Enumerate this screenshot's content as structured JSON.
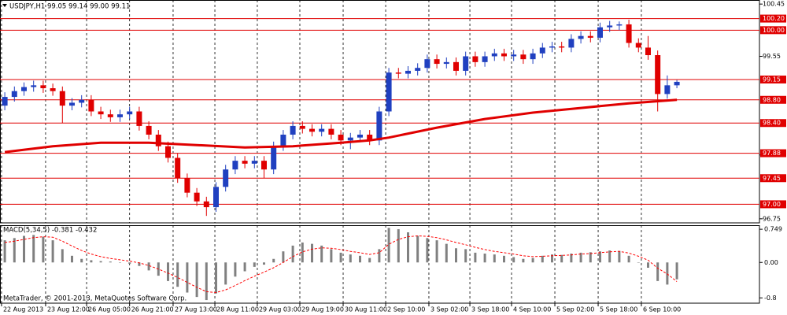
{
  "chart_data": [
    {
      "type": "candlestick",
      "title": "USDJPY,H1  99.05 99.14 99.00 99.11",
      "up_color": "#2040c0",
      "down_color": "#e00000",
      "xlim": [
        -0.5,
        78.6
      ],
      "ylim": [
        96.68,
        100.52
      ],
      "yticks": [
        100.45,
        99.55,
        97.85,
        96.75
      ],
      "open": [
        98.7,
        98.85,
        98.95,
        99.02,
        99.05,
        99.0,
        98.95,
        98.7,
        98.75,
        98.8,
        98.6,
        98.55,
        98.5,
        98.55,
        98.6,
        98.35,
        98.2,
        98.0,
        97.8,
        97.45,
        97.2,
        97.05,
        96.95,
        97.3,
        97.6,
        97.75,
        97.7,
        97.75,
        97.6,
        98.0,
        98.2,
        98.35,
        98.3,
        98.25,
        98.3,
        98.2,
        98.1,
        98.15,
        98.2,
        98.1,
        98.6,
        99.27,
        99.25,
        99.3,
        99.35,
        99.5,
        99.42,
        99.45,
        99.3,
        99.55,
        99.45,
        99.55,
        99.6,
        99.55,
        99.58,
        99.5,
        99.6,
        99.7,
        99.72,
        99.7,
        99.85,
        99.9,
        99.87,
        100.05,
        100.08,
        100.1,
        99.78,
        99.7,
        99.57,
        98.9,
        99.05
      ],
      "high": [
        98.93,
        99.03,
        99.1,
        99.13,
        99.13,
        99.08,
        99.03,
        98.83,
        98.88,
        98.88,
        98.68,
        98.63,
        98.63,
        98.68,
        98.68,
        98.43,
        98.28,
        98.08,
        97.88,
        97.53,
        97.28,
        97.13,
        97.38,
        97.68,
        97.83,
        97.83,
        97.83,
        97.83,
        98.08,
        98.28,
        98.43,
        98.43,
        98.38,
        98.38,
        98.38,
        98.28,
        98.23,
        98.28,
        98.28,
        98.68,
        99.35,
        99.35,
        99.38,
        99.43,
        99.58,
        99.58,
        99.53,
        99.53,
        99.63,
        99.63,
        99.63,
        99.68,
        99.68,
        99.66,
        99.66,
        99.68,
        99.78,
        99.8,
        99.8,
        99.93,
        99.98,
        99.98,
        100.13,
        100.16,
        100.15,
        100.18,
        99.86,
        99.9,
        99.65,
        99.22,
        99.14
      ],
      "low": [
        98.62,
        98.77,
        98.87,
        98.94,
        98.92,
        98.87,
        98.4,
        98.62,
        98.67,
        98.52,
        98.47,
        98.42,
        98.42,
        98.47,
        98.27,
        98.12,
        97.92,
        97.72,
        97.37,
        97.12,
        96.97,
        96.8,
        96.87,
        97.22,
        97.52,
        97.62,
        97.62,
        97.45,
        97.52,
        97.92,
        98.12,
        98.22,
        98.17,
        98.17,
        98.12,
        98.02,
        97.95,
        98.07,
        98.02,
        98.02,
        98.52,
        99.17,
        99.17,
        99.22,
        99.27,
        99.34,
        99.34,
        99.22,
        99.22,
        99.37,
        99.37,
        99.47,
        99.47,
        99.47,
        99.42,
        99.42,
        99.52,
        99.62,
        99.62,
        99.62,
        99.77,
        99.79,
        99.79,
        99.97,
        100.0,
        99.7,
        99.62,
        99.49,
        98.6,
        98.82,
        99.0
      ],
      "close": [
        98.85,
        98.95,
        99.02,
        99.05,
        99.0,
        98.95,
        98.7,
        98.75,
        98.8,
        98.6,
        98.55,
        98.5,
        98.55,
        98.6,
        98.35,
        98.2,
        98.0,
        97.8,
        97.45,
        97.2,
        97.05,
        96.95,
        97.3,
        97.6,
        97.75,
        97.7,
        97.75,
        97.6,
        98.0,
        98.2,
        98.35,
        98.3,
        98.25,
        98.3,
        98.2,
        98.1,
        98.15,
        98.2,
        98.1,
        98.6,
        99.27,
        99.25,
        99.3,
        99.35,
        99.5,
        99.42,
        99.45,
        99.3,
        99.55,
        99.45,
        99.55,
        99.6,
        99.55,
        99.58,
        99.5,
        99.6,
        99.7,
        99.72,
        99.7,
        99.85,
        99.9,
        99.87,
        100.05,
        100.08,
        100.1,
        99.78,
        99.7,
        99.57,
        98.9,
        99.05,
        99.11
      ],
      "ma": {
        "color": "#e00000",
        "x": [
          0,
          5,
          10,
          15,
          20,
          25,
          30,
          35,
          38,
          40,
          45,
          50,
          55,
          60,
          65,
          70
        ],
        "values": [
          97.9,
          98.0,
          98.06,
          98.06,
          98.02,
          97.98,
          98.0,
          98.06,
          98.1,
          98.15,
          98.32,
          98.47,
          98.58,
          98.66,
          98.74,
          98.8
        ]
      },
      "levels": {
        "color": "#e00000",
        "values": [
          100.2,
          100,
          99.15,
          98.8,
          98.4,
          97.88,
          97.45,
          97
        ],
        "value_labels": [
          "100.20",
          "100.00",
          "99.15",
          "98.80",
          "98.40",
          "97.88",
          "97.45",
          "97.00"
        ]
      },
      "grid": true
    },
    {
      "type": "macd",
      "title": "MACD(5,34,5) -0.381 -0.432",
      "watermark": "MetaTrader, © 2001-2013, MetaQuotes Software Corp.",
      "xlim": [
        -0.5,
        78.6
      ],
      "ylim": [
        -0.92,
        0.84
      ],
      "yticks": [
        0.749,
        {
          "value": 0,
          "label": "0.00"
        },
        -0.8
      ],
      "xticks": [
        {
          "value": -0.34,
          "label": "22 Aug 2013"
        },
        {
          "value": 4.25,
          "label": "23 Aug 12:00"
        },
        {
          "value": 8.52,
          "label": "26 Aug 05:00"
        },
        {
          "value": 13.0,
          "label": "26 Aug 21:00"
        },
        {
          "value": 17.53,
          "label": "27 Aug 13:00"
        },
        {
          "value": 21.88,
          "label": "28 Aug 11:00"
        },
        {
          "value": 26.3,
          "label": "29 Aug 03:00"
        },
        {
          "value": 30.73,
          "label": "29 Aug 19:00"
        },
        {
          "value": 35.24,
          "label": "30 Aug 11:00"
        },
        {
          "value": 39.67,
          "label": "2 Sep 10:00"
        },
        {
          "value": 44.17,
          "label": "3 Sep 02:00"
        },
        {
          "value": 48.44,
          "label": "3 Sep 18:00"
        },
        {
          "value": 52.78,
          "label": "4 Sep 10:00"
        },
        {
          "value": 57.29,
          "label": "5 Sep 02:00"
        },
        {
          "value": 61.8,
          "label": "5 Sep 18:00"
        },
        {
          "value": 66.3,
          "label": "6 Sep 10:00"
        }
      ],
      "series": [
        {
          "color": "#808080",
          "values": [
            0.5,
            0.55,
            0.6,
            0.62,
            0.58,
            0.5,
            0.3,
            0.15,
            0.08,
            0.05,
            0.03,
            0.02,
            0.0,
            -0.03,
            -0.08,
            -0.18,
            -0.3,
            -0.42,
            -0.55,
            -0.68,
            -0.78,
            -0.85,
            -0.7,
            -0.5,
            -0.32,
            -0.2,
            -0.1,
            -0.05,
            0.08,
            0.25,
            0.38,
            0.45,
            0.42,
            0.38,
            0.3,
            0.22,
            0.18,
            0.15,
            0.1,
            0.3,
            0.78,
            0.75,
            0.68,
            0.6,
            0.55,
            0.5,
            0.42,
            0.32,
            0.3,
            0.22,
            0.2,
            0.18,
            0.15,
            0.12,
            0.08,
            0.1,
            0.15,
            0.18,
            0.17,
            0.2,
            0.22,
            0.23,
            0.25,
            0.27,
            0.26,
            0.15,
            0.0,
            -0.12,
            -0.42,
            -0.5,
            -0.381
          ]
        },
        {
          "color": "#ff0000",
          "values": [
            0.45,
            0.48,
            0.52,
            0.56,
            0.58,
            0.57,
            0.48,
            0.37,
            0.27,
            0.19,
            0.13,
            0.09,
            0.06,
            0.03,
            -0.01,
            -0.07,
            -0.15,
            -0.24,
            -0.34,
            -0.45,
            -0.56,
            -0.66,
            -0.68,
            -0.62,
            -0.52,
            -0.41,
            -0.31,
            -0.22,
            -0.12,
            0.0,
            0.13,
            0.24,
            0.3,
            0.33,
            0.32,
            0.29,
            0.25,
            0.22,
            0.18,
            0.22,
            0.41,
            0.52,
            0.58,
            0.6,
            0.59,
            0.56,
            0.51,
            0.45,
            0.4,
            0.34,
            0.29,
            0.25,
            0.22,
            0.19,
            0.15,
            0.13,
            0.14,
            0.15,
            0.16,
            0.17,
            0.19,
            0.2,
            0.22,
            0.24,
            0.25,
            0.21,
            0.14,
            0.05,
            -0.13,
            -0.26,
            -0.432
          ]
        }
      ],
      "grid": true
    }
  ]
}
